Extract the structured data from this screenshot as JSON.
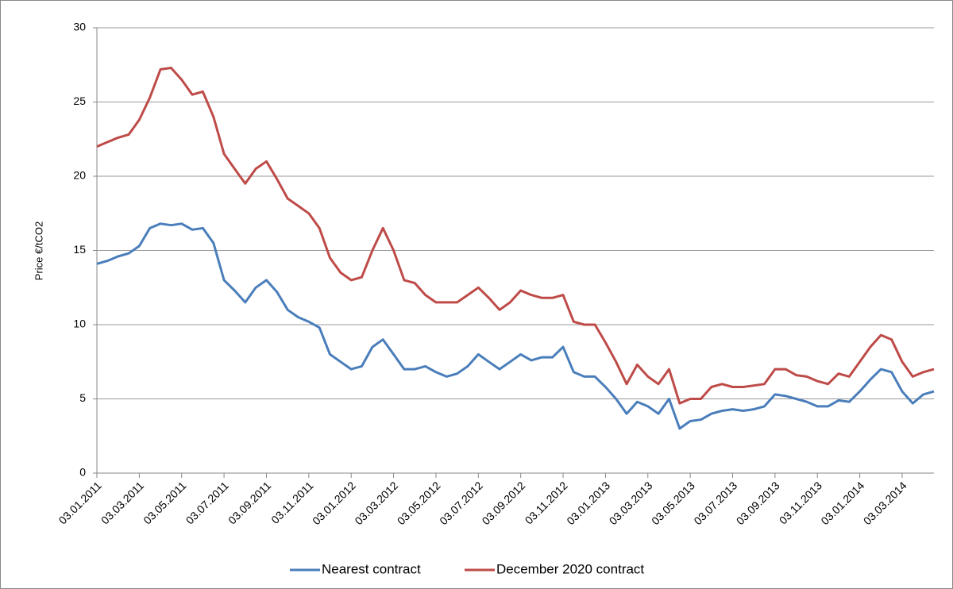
{
  "chart_data": {
    "type": "line",
    "y_label": "Price €/tCO2",
    "categories": [
      "03.01.2011",
      null,
      null,
      null,
      "03.03.2011",
      null,
      null,
      null,
      "03.05.2011",
      null,
      null,
      null,
      "03.07.2011",
      null,
      null,
      null,
      "03.09.2011",
      null,
      null,
      null,
      "03.11.2011",
      null,
      null,
      null,
      "03.01.2012",
      null,
      null,
      null,
      "03.03.2012",
      null,
      null,
      null,
      "03.05.2012",
      null,
      null,
      null,
      "03.07.2012",
      null,
      null,
      null,
      "03.09.2012",
      null,
      null,
      null,
      "03.11.2012",
      null,
      null,
      null,
      "03.01.2013",
      null,
      null,
      null,
      "03.03.2013",
      null,
      null,
      null,
      "03.05.2013",
      null,
      null,
      null,
      "03.07.2013",
      null,
      null,
      null,
      "03.09.2013",
      null,
      null,
      null,
      "03.11.2013",
      null,
      null,
      null,
      "03.01.2014",
      null,
      null,
      null,
      "03.03.2014",
      null,
      null,
      null
    ],
    "series": [
      {
        "name": "Nearest contract",
        "color": "#4a7ebb",
        "values": [
          14.1,
          14.3,
          14.6,
          14.8,
          15.3,
          16.5,
          16.8,
          16.7,
          16.8,
          16.4,
          16.5,
          15.5,
          13.0,
          12.3,
          11.5,
          12.5,
          13.0,
          12.2,
          11.0,
          10.5,
          10.2,
          9.8,
          8.0,
          7.5,
          7.0,
          7.2,
          8.5,
          9.0,
          8.0,
          7.0,
          7.0,
          7.2,
          6.8,
          6.5,
          6.7,
          7.2,
          8.0,
          7.5,
          7.0,
          7.5,
          8.0,
          7.6,
          7.8,
          7.8,
          8.5,
          6.8,
          6.5,
          6.5,
          5.8,
          5.0,
          4.0,
          4.8,
          4.5,
          4.0,
          5.0,
          3.0,
          3.5,
          3.6,
          4.0,
          4.2,
          4.3,
          4.2,
          4.3,
          4.5,
          5.3,
          5.2,
          5.0,
          4.8,
          4.5,
          4.5,
          4.9,
          4.8,
          5.5,
          6.3,
          7.0,
          6.8,
          5.5,
          4.7,
          5.3,
          5.5
        ]
      },
      {
        "name": "December 2020 contract",
        "color": "#be4b48",
        "values": [
          22.0,
          22.3,
          22.6,
          22.8,
          23.8,
          25.3,
          27.2,
          27.3,
          26.5,
          25.5,
          25.7,
          24.0,
          21.5,
          20.5,
          19.5,
          20.5,
          21.0,
          19.8,
          18.5,
          18.0,
          17.5,
          16.5,
          14.5,
          13.5,
          13.0,
          13.2,
          15.0,
          16.5,
          15.0,
          13.0,
          12.8,
          12.0,
          11.5,
          11.5,
          11.5,
          12.0,
          12.5,
          11.8,
          11.0,
          11.5,
          12.3,
          12.0,
          11.8,
          11.8,
          12.0,
          10.2,
          10.0,
          10.0,
          8.8,
          7.5,
          6.0,
          7.3,
          6.5,
          6.0,
          7.0,
          4.7,
          5.0,
          5.0,
          5.8,
          6.0,
          5.8,
          5.8,
          5.9,
          6.0,
          7.0,
          7.0,
          6.6,
          6.5,
          6.2,
          6.0,
          6.7,
          6.5,
          7.5,
          8.5,
          9.3,
          9.0,
          7.5,
          6.5,
          6.8,
          7.0
        ]
      }
    ],
    "ylim": [
      0,
      30
    ],
    "yticks": [
      0,
      5,
      10,
      15,
      20,
      25,
      30
    ],
    "grid": true,
    "legend": "bottom"
  }
}
